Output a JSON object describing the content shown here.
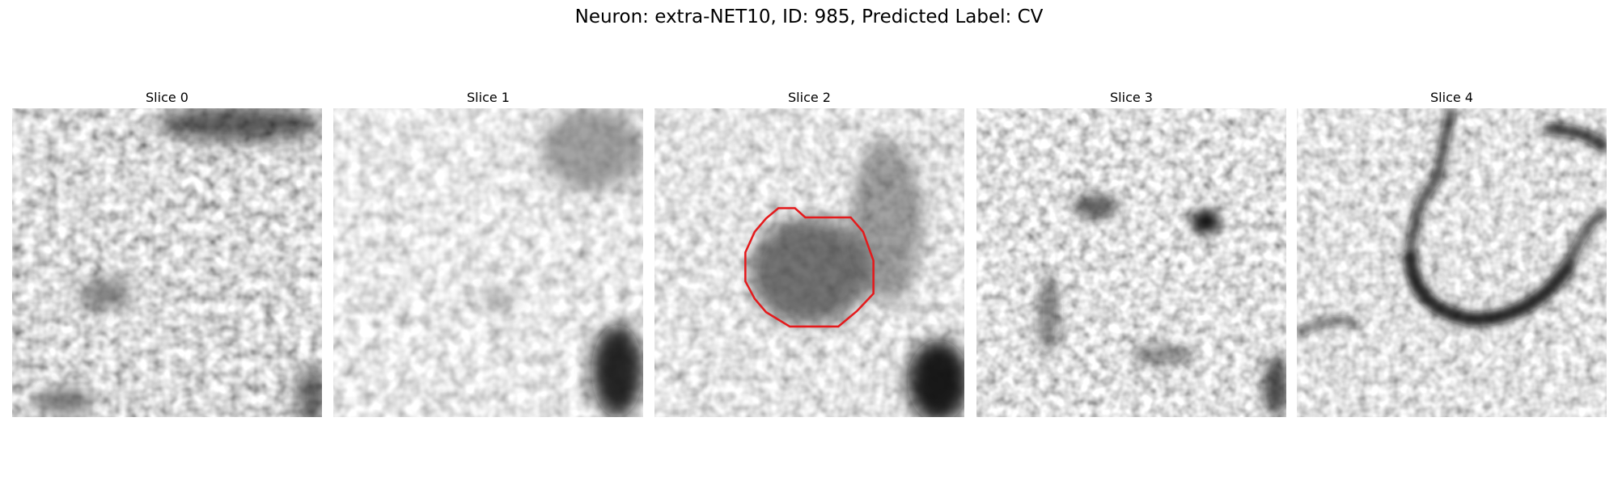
{
  "title": "Neuron: extra-NET10, ID: 985, Predicted Label: CV",
  "slices": [
    "Slice 0",
    "Slice 1",
    "Slice 2",
    "Slice 3",
    "Slice 4"
  ]
}
